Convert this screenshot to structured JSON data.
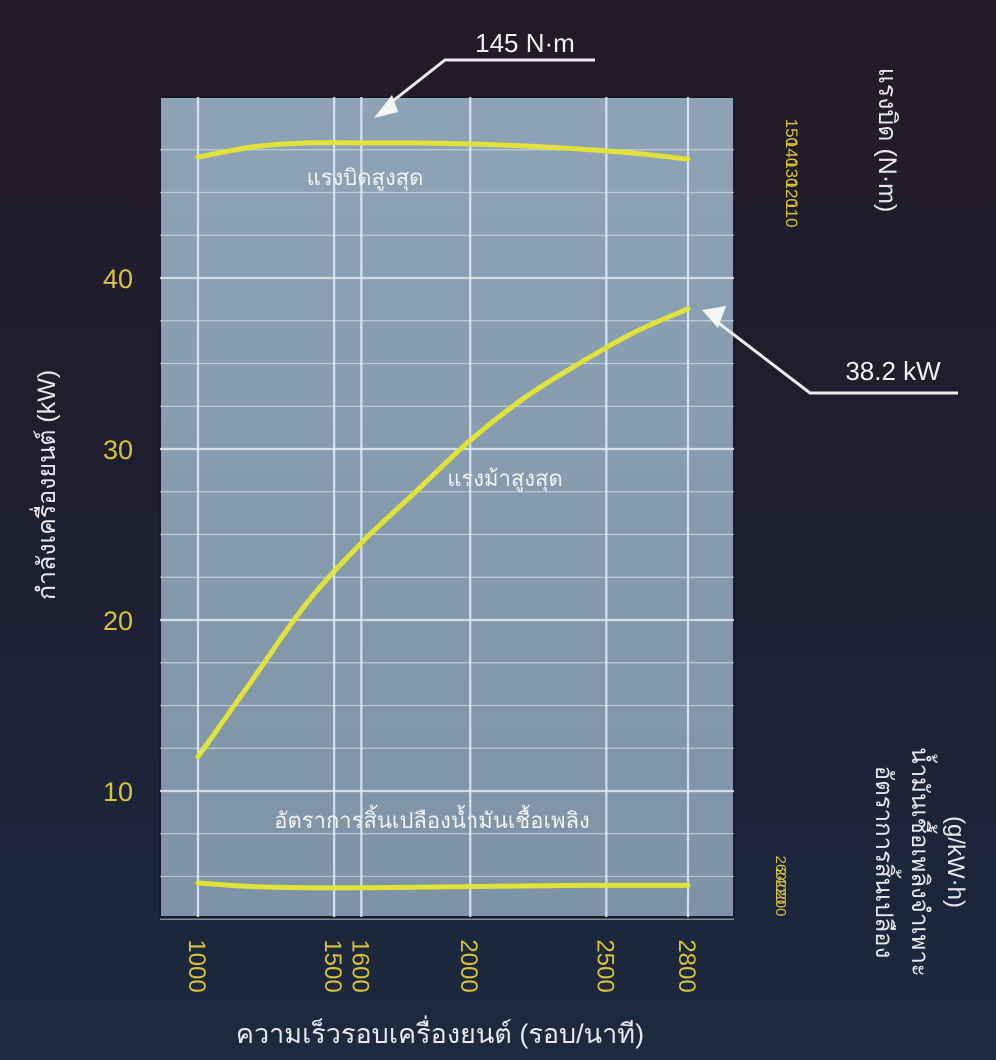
{
  "chart_data": {
    "type": "line",
    "x_axis": {
      "label": "ความเร็วรอบเครื่องยนต์ (รอบ/นาที)",
      "min": 1000,
      "max": 2800,
      "tick_values": [
        1000,
        1500,
        1600,
        2000,
        2500,
        2800
      ],
      "tick_labels": [
        "1000",
        "1500",
        "1600",
        "2000",
        "2500",
        "2800"
      ]
    },
    "y_axis_power": {
      "label": "กำลังเครื่องยนต์ (kW)",
      "min": 0,
      "max": 48.5,
      "tick_values": [
        10,
        20,
        30,
        40
      ],
      "tick_labels": [
        "10",
        "20",
        "30",
        "40"
      ]
    },
    "y_axis_torque": {
      "label": "แรงบิด (N·m)",
      "min": 110,
      "max": 150,
      "tick_values": [
        110,
        120,
        130,
        140,
        150
      ],
      "tick_labels": [
        "110",
        "120",
        "130",
        "140",
        "150"
      ]
    },
    "y_axis_fuel": {
      "label_line1": "อัตราการสิ้นเปลือง",
      "label_line2": "น้ำมันเชื้อเพลิงจำเพาะ",
      "label_line3": "(g/kW·h)",
      "min": 200,
      "max": 260,
      "tick_values": [
        200,
        220,
        240,
        260
      ],
      "tick_labels": [
        "200",
        "220",
        "240",
        "260"
      ]
    },
    "series": [
      {
        "name": "แรงบิดสูงสุด",
        "axis": "torque",
        "x": [
          1000,
          1200,
          1400,
          1600,
          1800,
          2000,
          2200,
          2400,
          2600,
          2800
        ],
        "y": [
          138,
          143,
          145,
          145,
          145,
          144.5,
          143.5,
          142,
          140,
          137
        ]
      },
      {
        "name": "แรงม้าสูงสุด",
        "axis": "power",
        "x": [
          1000,
          1200,
          1400,
          1600,
          1800,
          2000,
          2200,
          2400,
          2600,
          2800
        ],
        "y": [
          12,
          16.5,
          21,
          24.5,
          27.5,
          30.5,
          33,
          35,
          36.8,
          38.2
        ]
      },
      {
        "name": "อัตราการสิ้นเปลืองน้ำมันเชื้อเพลิง",
        "axis": "fuel",
        "x": [
          1000,
          1200,
          1400,
          1600,
          1800,
          2000,
          2200,
          2400,
          2600,
          2800
        ],
        "y": [
          235,
          229,
          227,
          227,
          228,
          229,
          230,
          231,
          231,
          231
        ]
      }
    ],
    "annotations": [
      {
        "text": "145 N·m",
        "x": 1600,
        "y": 145,
        "axis": "torque"
      },
      {
        "text": "38.2 kW",
        "x": 2800,
        "y": 38.2,
        "axis": "power"
      }
    ],
    "grid": true,
    "colors": {
      "curve": "#e1e23a",
      "tick": "#d9c23c",
      "label": "#e8e8ec",
      "plot_bg": "#8499ad",
      "grid": "#dfe9f1"
    }
  }
}
